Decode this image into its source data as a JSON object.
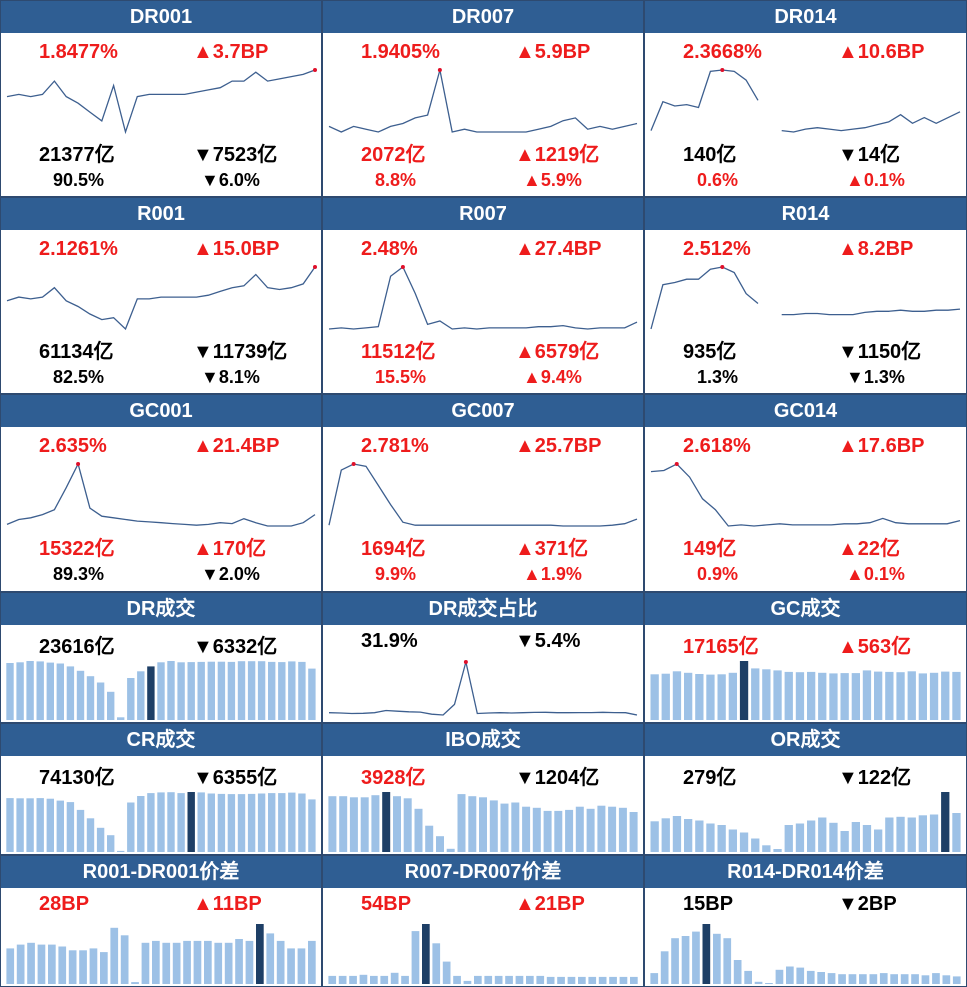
{
  "colors": {
    "up": "#ee1c1c",
    "down": "#17a83c",
    "header": "#2f5e93",
    "line": "#3d5f8f",
    "bar": "#9dc1e6",
    "bar_highlight": "#1e3f66",
    "marker": "#e0102a"
  },
  "panels": [
    {
      "title": "DR001",
      "kind": "line",
      "rate": {
        "text": "1.8477%",
        "dir": "up"
      },
      "rate_change": {
        "text": "▲3.7BP",
        "dir": "up"
      },
      "volume": {
        "text": "21377亿",
        "dir": "down"
      },
      "volume_change": {
        "text": "▼7523亿",
        "dir": "down"
      },
      "share": {
        "text": "90.5%",
        "dir": "down"
      },
      "share_change": {
        "text": "▼6.0%",
        "dir": "down"
      },
      "chart_data": {
        "type": "line",
        "values": [
          1.73,
          1.74,
          1.73,
          1.74,
          1.8,
          1.73,
          1.7,
          1.66,
          1.62,
          1.78,
          1.57,
          1.73,
          1.74,
          1.74,
          1.74,
          1.74,
          1.75,
          1.76,
          1.77,
          1.8,
          1.8,
          1.84,
          1.8,
          1.81,
          1.82,
          1.83,
          1.85
        ]
      }
    },
    {
      "title": "DR007",
      "kind": "line",
      "rate": {
        "text": "1.9405%",
        "dir": "up"
      },
      "rate_change": {
        "text": "▲5.9BP",
        "dir": "up"
      },
      "volume": {
        "text": "2072亿",
        "dir": "up"
      },
      "volume_change": {
        "text": "▲1219亿",
        "dir": "up"
      },
      "share": {
        "text": "8.8%",
        "dir": "up"
      },
      "share_change": {
        "text": "▲5.9%",
        "dir": "up"
      },
      "chart_data": {
        "type": "line",
        "values": [
          1.74,
          1.72,
          1.74,
          1.73,
          1.72,
          1.74,
          1.75,
          1.77,
          1.78,
          1.94,
          1.72,
          1.73,
          1.72,
          1.72,
          1.72,
          1.72,
          1.72,
          1.73,
          1.74,
          1.76,
          1.77,
          1.73,
          1.74,
          1.73,
          1.74,
          1.75
        ]
      }
    },
    {
      "title": "DR014",
      "kind": "line",
      "rate": {
        "text": "2.3668%",
        "dir": "up"
      },
      "rate_change": {
        "text": "▲10.6BP",
        "dir": "up"
      },
      "volume": {
        "text": "140亿",
        "dir": "down"
      },
      "volume_change": {
        "text": "▼14亿",
        "dir": "down"
      },
      "share": {
        "text": "0.6%",
        "dir": "up"
      },
      "share_change": {
        "text": "▲0.1%",
        "dir": "up"
      },
      "chart_data": {
        "type": "line",
        "values": [
          1.95,
          2.15,
          2.12,
          2.13,
          2.11,
          2.36,
          2.37,
          2.36,
          2.3,
          2.16,
          null,
          1.95,
          1.94,
          1.96,
          1.97,
          1.96,
          1.95,
          1.96,
          1.97,
          1.99,
          2.01,
          2.06,
          2.0,
          2.04,
          2.0,
          2.04,
          2.08
        ]
      }
    },
    {
      "title": "R001",
      "kind": "line",
      "rate": {
        "text": "2.1261%",
        "dir": "up"
      },
      "rate_change": {
        "text": "▲15.0BP",
        "dir": "up"
      },
      "volume": {
        "text": "61134亿",
        "dir": "down"
      },
      "volume_change": {
        "text": "▼11739亿",
        "dir": "down"
      },
      "share": {
        "text": "82.5%",
        "dir": "down"
      },
      "share_change": {
        "text": "▼8.1%",
        "dir": "down"
      },
      "chart_data": {
        "type": "line",
        "values": [
          1.95,
          1.97,
          1.96,
          1.97,
          2.02,
          1.95,
          1.92,
          1.88,
          1.85,
          1.86,
          1.8,
          1.96,
          1.96,
          1.97,
          1.97,
          1.97,
          1.97,
          1.98,
          2.0,
          2.02,
          2.03,
          2.09,
          2.02,
          2.01,
          2.02,
          2.04,
          2.13
        ]
      }
    },
    {
      "title": "R007",
      "kind": "line",
      "rate": {
        "text": "2.48%",
        "dir": "up"
      },
      "rate_change": {
        "text": "▲27.4BP",
        "dir": "up"
      },
      "volume": {
        "text": "11512亿",
        "dir": "up"
      },
      "volume_change": {
        "text": "▲6579亿",
        "dir": "up"
      },
      "share": {
        "text": "15.5%",
        "dir": "up"
      },
      "share_change": {
        "text": "▲9.4%",
        "dir": "up"
      },
      "chart_data": {
        "type": "line",
        "values": [
          1.94,
          1.95,
          1.94,
          1.95,
          1.96,
          2.4,
          2.48,
          2.25,
          1.98,
          2.01,
          1.94,
          1.95,
          1.94,
          1.95,
          1.95,
          1.95,
          1.95,
          1.96,
          1.96,
          1.97,
          1.95,
          1.94,
          1.95,
          1.95,
          1.95,
          2.0
        ]
      }
    },
    {
      "title": "R014",
      "kind": "line",
      "rate": {
        "text": "2.512%",
        "dir": "up"
      },
      "rate_change": {
        "text": "▲8.2BP",
        "dir": "up"
      },
      "volume": {
        "text": "935亿",
        "dir": "down"
      },
      "volume_change": {
        "text": "▼1150亿",
        "dir": "down"
      },
      "share": {
        "text": "1.3%",
        "dir": "down"
      },
      "share_change": {
        "text": "▼1.3%",
        "dir": "down"
      },
      "chart_data": {
        "type": "line",
        "values": [
          1.95,
          2.35,
          2.37,
          2.4,
          2.4,
          2.49,
          2.51,
          2.46,
          2.27,
          2.18,
          null,
          2.08,
          2.08,
          2.09,
          2.09,
          2.08,
          2.08,
          2.08,
          2.1,
          2.11,
          2.11,
          2.12,
          2.11,
          2.11,
          2.12,
          2.12,
          2.13
        ]
      }
    },
    {
      "title": "GC001",
      "kind": "line",
      "rate": {
        "text": "2.635%",
        "dir": "up"
      },
      "rate_change": {
        "text": "▲21.4BP",
        "dir": "up"
      },
      "volume": {
        "text": "15322亿",
        "dir": "up"
      },
      "volume_change": {
        "text": "▲170亿",
        "dir": "up"
      },
      "share": {
        "text": "89.3%",
        "dir": "down"
      },
      "share_change": {
        "text": "▼2.0%",
        "dir": "down"
      },
      "chart_data": {
        "type": "line",
        "values": [
          1.9,
          1.96,
          1.98,
          2.02,
          2.08,
          2.35,
          2.64,
          2.1,
          2.0,
          1.98,
          1.96,
          1.94,
          1.93,
          1.92,
          1.91,
          1.9,
          1.89,
          1.9,
          1.92,
          1.91,
          1.97,
          1.92,
          1.88,
          1.88,
          1.88,
          1.92,
          2.02
        ]
      }
    },
    {
      "title": "GC007",
      "kind": "line",
      "rate": {
        "text": "2.781%",
        "dir": "up"
      },
      "rate_change": {
        "text": "▲25.7BP",
        "dir": "up"
      },
      "volume": {
        "text": "1694亿",
        "dir": "up"
      },
      "volume_change": {
        "text": "▲371亿",
        "dir": "up"
      },
      "share": {
        "text": "9.9%",
        "dir": "up"
      },
      "share_change": {
        "text": "▲1.9%",
        "dir": "up"
      },
      "chart_data": {
        "type": "line",
        "values": [
          1.98,
          2.7,
          2.78,
          2.75,
          2.5,
          2.25,
          2.02,
          1.98,
          1.98,
          1.98,
          1.98,
          1.98,
          1.98,
          1.98,
          1.98,
          1.98,
          1.98,
          1.98,
          1.98,
          1.97,
          1.97,
          1.97,
          1.97,
          1.98,
          2.0,
          2.06
        ]
      }
    },
    {
      "title": "GC014",
      "kind": "line",
      "rate": {
        "text": "2.618%",
        "dir": "up"
      },
      "rate_change": {
        "text": "▲17.6BP",
        "dir": "up"
      },
      "volume": {
        "text": "149亿",
        "dir": "up"
      },
      "volume_change": {
        "text": "▲22亿",
        "dir": "up"
      },
      "share": {
        "text": "0.9%",
        "dir": "up"
      },
      "share_change": {
        "text": "▲0.1%",
        "dir": "up"
      },
      "chart_data": {
        "type": "line",
        "values": [
          2.55,
          2.56,
          2.62,
          2.5,
          2.3,
          2.2,
          2.05,
          2.06,
          2.05,
          2.06,
          2.07,
          2.06,
          2.06,
          2.06,
          2.06,
          2.07,
          2.07,
          2.08,
          2.12,
          2.08,
          2.07,
          2.07,
          2.07,
          2.07,
          2.1
        ]
      }
    },
    {
      "title": "DR成交",
      "kind": "bar",
      "value": {
        "text": "23616亿",
        "dir": "down"
      },
      "change": {
        "text": "▼6332亿",
        "dir": "down"
      },
      "chart_data": {
        "type": "bar",
        "values": [
          25500,
          25800,
          26400,
          26200,
          25700,
          25300,
          24000,
          22000,
          19600,
          16800,
          12600,
          1200,
          18800,
          21800,
          24000,
          25800,
          26400,
          25800,
          25900,
          26000,
          26100,
          26100,
          26000,
          26300,
          26300,
          26300,
          26000,
          25900,
          26200,
          26000,
          23000
        ],
        "highlight_index": 14
      }
    },
    {
      "title": "DR成交占比",
      "kind": "line",
      "value": {
        "text": "31.9%",
        "dir": "down"
      },
      "change": {
        "text": "▼5.4%",
        "dir": "down"
      },
      "chart_data": {
        "type": "line",
        "values": [
          2.0,
          1.8,
          1.5,
          1.6,
          2.0,
          3.5,
          3.0,
          2.6,
          2.4,
          1.0,
          0.5,
          7.5,
          35.5,
          1.5,
          1.8,
          2.0,
          1.8,
          2.0,
          2.2,
          2.3,
          2.0,
          2.0,
          2.1,
          2.1,
          2.3,
          2.1,
          2.0,
          0.5
        ]
      }
    },
    {
      "title": "GC成交",
      "kind": "bar",
      "value": {
        "text": "17165亿",
        "dir": "up"
      },
      "change": {
        "text": "▲563亿",
        "dir": "up"
      },
      "chart_data": {
        "type": "bar",
        "values": [
          15500,
          15700,
          16500,
          16000,
          15600,
          15400,
          15500,
          16000,
          20000,
          17500,
          17200,
          16800,
          16300,
          16200,
          16300,
          16000,
          15800,
          15900,
          15900,
          16800,
          16400,
          16300,
          16200,
          16500,
          15800,
          16000,
          16400,
          16300
        ],
        "highlight_index": 8
      }
    },
    {
      "title": "CR成交",
      "kind": "bar",
      "value": {
        "text": "74130亿",
        "dir": "down"
      },
      "change": {
        "text": "▼6355亿",
        "dir": "down"
      },
      "chart_data": {
        "type": "bar",
        "values": [
          25600,
          25500,
          25500,
          25600,
          25300,
          24400,
          23700,
          20000,
          16000,
          11500,
          8000,
          500,
          23500,
          26600,
          28000,
          28300,
          28400,
          28000,
          28500,
          28300,
          27800,
          27600,
          27500,
          27500,
          27600,
          27800,
          28000,
          28000,
          28200,
          27800,
          25000
        ],
        "highlight_index": 18
      }
    },
    {
      "title": "IBO成交",
      "kind": "bar",
      "value": {
        "text": "3928亿",
        "dir": "up"
      },
      "change": {
        "text": "▼1204亿",
        "dir": "down"
      },
      "chart_data": {
        "type": "bar",
        "values": [
          5300,
          5300,
          5200,
          5200,
          5400,
          5700,
          5300,
          5100,
          4100,
          2500,
          1500,
          300,
          5500,
          5300,
          5200,
          4900,
          4600,
          4700,
          4300,
          4200,
          3900,
          3900,
          4000,
          4300,
          4100,
          4400,
          4300,
          4200,
          3800
        ],
        "highlight_index": 5
      }
    },
    {
      "title": "OR成交",
      "kind": "bar",
      "value": {
        "text": "279亿",
        "dir": "down"
      },
      "change": {
        "text": "▼122亿",
        "dir": "down"
      },
      "chart_data": {
        "type": "bar",
        "values": [
          205,
          225,
          240,
          220,
          210,
          190,
          180,
          150,
          130,
          90,
          45,
          20,
          180,
          190,
          210,
          230,
          195,
          140,
          200,
          180,
          150,
          230,
          235,
          230,
          245,
          250,
          400,
          260
        ],
        "highlight_index": 26
      }
    },
    {
      "title": "R001-DR001价差",
      "kind": "bar",
      "value": {
        "text": "28BP",
        "dir": "up"
      },
      "change": {
        "text": "▲11BP",
        "dir": "up"
      },
      "chart_data": {
        "type": "bar",
        "values": [
          19,
          21,
          22,
          21,
          21,
          20,
          18,
          18,
          19,
          17,
          30,
          26,
          1,
          22,
          23,
          22,
          22,
          23,
          23,
          23,
          22,
          22,
          24,
          23,
          32,
          27,
          23,
          19,
          19,
          23
        ],
        "highlight_index": 24
      }
    },
    {
      "title": "R007-DR007价差",
      "kind": "bar",
      "value": {
        "text": "54BP",
        "dir": "up"
      },
      "change": {
        "text": "▲21BP",
        "dir": "up"
      },
      "chart_data": {
        "type": "bar",
        "values": [
          8,
          8,
          8,
          9,
          8,
          8,
          11,
          8,
          52,
          59,
          40,
          22,
          8,
          3,
          8,
          8,
          8,
          8,
          8,
          8,
          8,
          7,
          7,
          7,
          7,
          7,
          7,
          7,
          7,
          7
        ],
        "highlight_index": 9
      }
    },
    {
      "title": "R014-DR014价差",
      "kind": "bar",
      "value": {
        "text": "15BP",
        "dir": "down"
      },
      "change": {
        "text": "▼2BP",
        "dir": "down"
      },
      "chart_data": {
        "type": "bar",
        "values": [
          10,
          30,
          42,
          44,
          48,
          55,
          46,
          42,
          22,
          12,
          2,
          0,
          13,
          16,
          15,
          12,
          11,
          10,
          9,
          9,
          9,
          9,
          10,
          9,
          9,
          9,
          8,
          10,
          8,
          7
        ],
        "highlight_index": 5
      }
    }
  ]
}
